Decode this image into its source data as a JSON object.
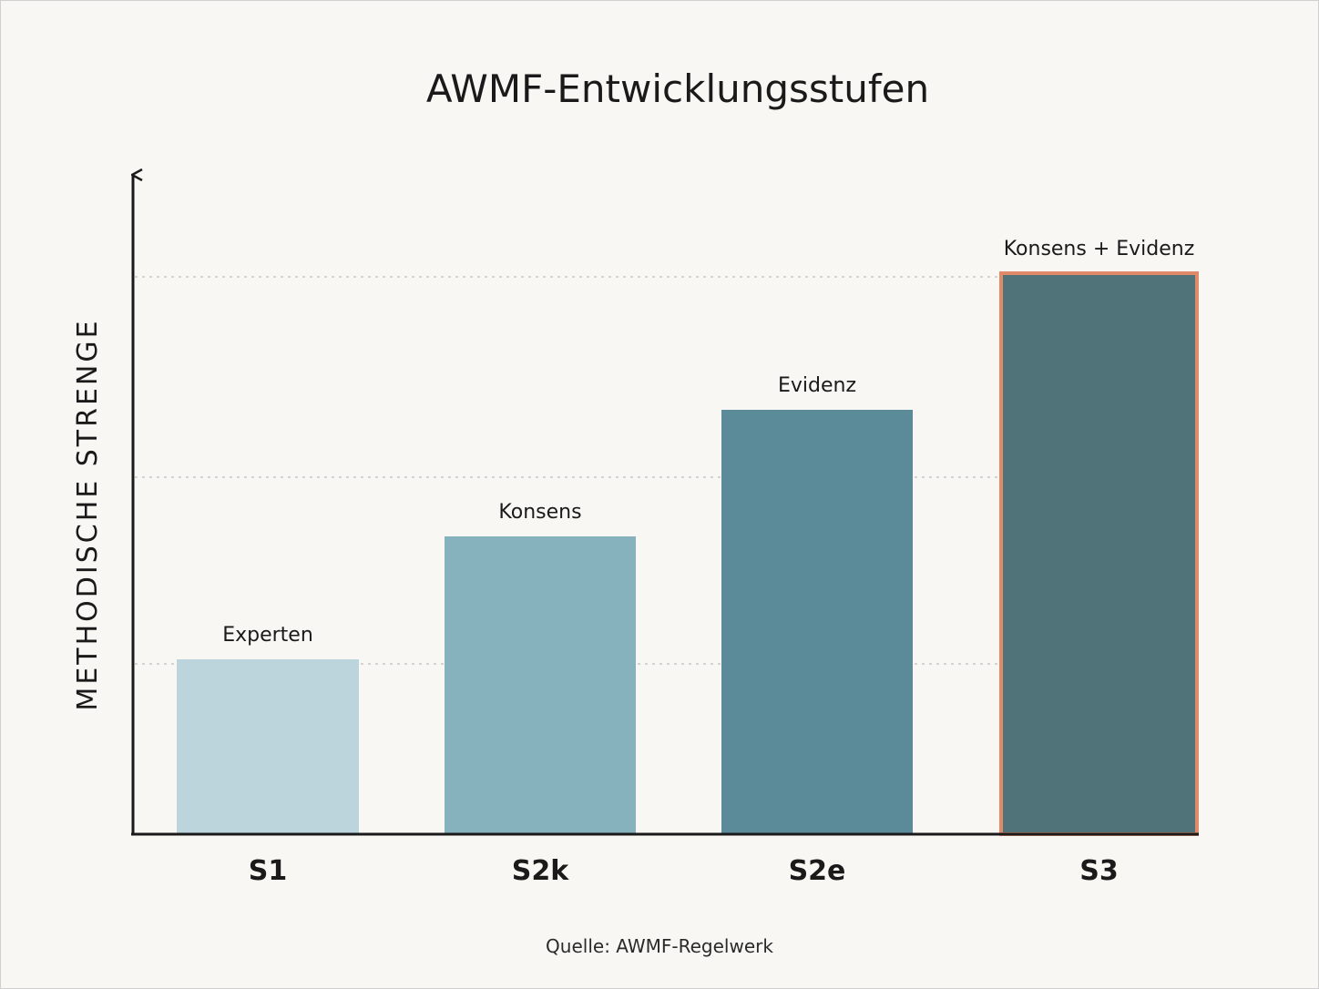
{
  "chart_data": {
    "type": "bar",
    "title": "AWMF-Entwicklungsstufen",
    "ylabel": "METHODISCHE STRENGE",
    "xlabel": "",
    "categories": [
      "S1",
      "S2k",
      "S2e",
      "S3"
    ],
    "bar_labels": [
      "Experten",
      "Konsens",
      "Evidenz",
      "Konsens + Evidenz"
    ],
    "values": [
      1,
      2,
      3,
      4
    ],
    "ylim": [
      0,
      4.4
    ],
    "grid": true,
    "colors": [
      "#bcd4dc",
      "#86b2be",
      "#5b8b99",
      "#4f7379"
    ],
    "highlight": {
      "category": "S3",
      "border_color": "#e08a6a"
    },
    "source": "Quelle: AWMF-Regelwerk"
  }
}
